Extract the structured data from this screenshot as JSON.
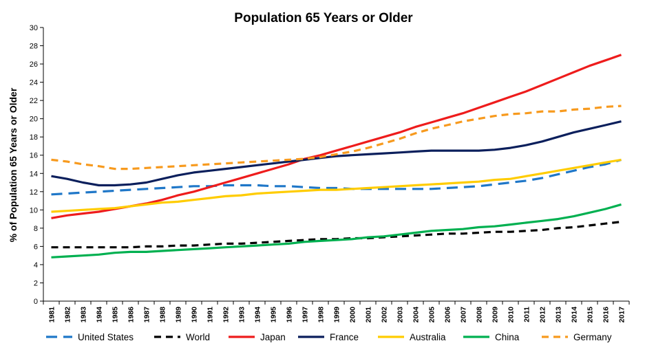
{
  "chart_data": {
    "type": "line",
    "title": "Population 65 Years or Older",
    "xlabel": "",
    "ylabel": "% of Population 65 Years or Older",
    "ylim": [
      0,
      30
    ],
    "yticks": [
      0,
      2,
      4,
      6,
      8,
      10,
      12,
      14,
      16,
      18,
      20,
      22,
      24,
      26,
      28,
      30
    ],
    "grid": false,
    "legend_position": "bottom",
    "x": [
      1981,
      1982,
      1983,
      1984,
      1985,
      1986,
      1987,
      1988,
      1989,
      1990,
      1991,
      1992,
      1993,
      1994,
      1995,
      1996,
      1997,
      1998,
      1999,
      2000,
      2001,
      2002,
      2003,
      2004,
      2005,
      2006,
      2007,
      2008,
      2009,
      2010,
      2011,
      2012,
      2013,
      2014,
      2015,
      2016,
      2017
    ],
    "series": [
      {
        "name": "United States",
        "color": "#1f77c8",
        "dash": "long-dash",
        "values": [
          11.7,
          11.8,
          11.9,
          12.0,
          12.1,
          12.2,
          12.3,
          12.4,
          12.5,
          12.6,
          12.6,
          12.7,
          12.7,
          12.7,
          12.6,
          12.6,
          12.5,
          12.4,
          12.4,
          12.3,
          12.3,
          12.3,
          12.3,
          12.3,
          12.3,
          12.4,
          12.5,
          12.6,
          12.8,
          13.0,
          13.2,
          13.5,
          13.9,
          14.3,
          14.7,
          15.0,
          15.5
        ]
      },
      {
        "name": "World",
        "color": "#000000",
        "dash": "dash",
        "values": [
          5.9,
          5.9,
          5.9,
          5.9,
          5.9,
          5.9,
          6.0,
          6.0,
          6.1,
          6.1,
          6.2,
          6.3,
          6.3,
          6.4,
          6.5,
          6.6,
          6.7,
          6.8,
          6.8,
          6.9,
          6.9,
          7.0,
          7.1,
          7.2,
          7.3,
          7.4,
          7.4,
          7.5,
          7.6,
          7.6,
          7.7,
          7.8,
          8.0,
          8.1,
          8.3,
          8.5,
          8.7
        ]
      },
      {
        "name": "Japan",
        "color": "#ee1c1c",
        "dash": "solid",
        "values": [
          9.1,
          9.4,
          9.6,
          9.8,
          10.1,
          10.4,
          10.7,
          11.1,
          11.6,
          12.0,
          12.5,
          13.0,
          13.5,
          14.0,
          14.5,
          15.0,
          15.6,
          16.0,
          16.5,
          17.0,
          17.5,
          18.0,
          18.5,
          19.1,
          19.6,
          20.1,
          20.6,
          21.2,
          21.8,
          22.4,
          23.0,
          23.7,
          24.4,
          25.1,
          25.8,
          26.4,
          27.0
        ]
      },
      {
        "name": "France",
        "color": "#0b1f5c",
        "dash": "solid",
        "values": [
          13.7,
          13.4,
          13.0,
          12.7,
          12.7,
          12.8,
          13.0,
          13.4,
          13.8,
          14.1,
          14.3,
          14.5,
          14.7,
          14.9,
          15.1,
          15.3,
          15.5,
          15.7,
          15.9,
          16.0,
          16.1,
          16.2,
          16.3,
          16.4,
          16.5,
          16.5,
          16.5,
          16.5,
          16.6,
          16.8,
          17.1,
          17.5,
          18.0,
          18.5,
          18.9,
          19.3,
          19.7
        ]
      },
      {
        "name": "Australia",
        "color": "#ffcc00",
        "dash": "solid",
        "values": [
          9.8,
          9.9,
          10.0,
          10.1,
          10.2,
          10.4,
          10.6,
          10.8,
          10.9,
          11.1,
          11.3,
          11.5,
          11.6,
          11.8,
          11.9,
          12.0,
          12.1,
          12.2,
          12.2,
          12.3,
          12.4,
          12.5,
          12.6,
          12.7,
          12.8,
          12.9,
          13.0,
          13.1,
          13.3,
          13.4,
          13.7,
          14.0,
          14.3,
          14.6,
          14.9,
          15.2,
          15.5
        ]
      },
      {
        "name": "China",
        "color": "#00b050",
        "dash": "solid",
        "values": [
          4.8,
          4.9,
          5.0,
          5.1,
          5.3,
          5.4,
          5.4,
          5.5,
          5.6,
          5.7,
          5.8,
          5.9,
          6.0,
          6.1,
          6.2,
          6.3,
          6.5,
          6.6,
          6.7,
          6.8,
          7.0,
          7.1,
          7.3,
          7.5,
          7.7,
          7.8,
          7.9,
          8.1,
          8.2,
          8.4,
          8.6,
          8.8,
          9.0,
          9.3,
          9.7,
          10.1,
          10.6
        ]
      },
      {
        "name": "Germany",
        "color": "#f79a1e",
        "dash": "dash",
        "values": [
          15.5,
          15.3,
          15.0,
          14.8,
          14.5,
          14.5,
          14.6,
          14.7,
          14.8,
          14.9,
          15.0,
          15.1,
          15.2,
          15.3,
          15.4,
          15.5,
          15.6,
          15.8,
          16.1,
          16.4,
          16.8,
          17.3,
          17.8,
          18.4,
          18.9,
          19.3,
          19.7,
          20.0,
          20.3,
          20.5,
          20.6,
          20.8,
          20.8,
          21.0,
          21.1,
          21.3,
          21.4
        ]
      }
    ]
  }
}
